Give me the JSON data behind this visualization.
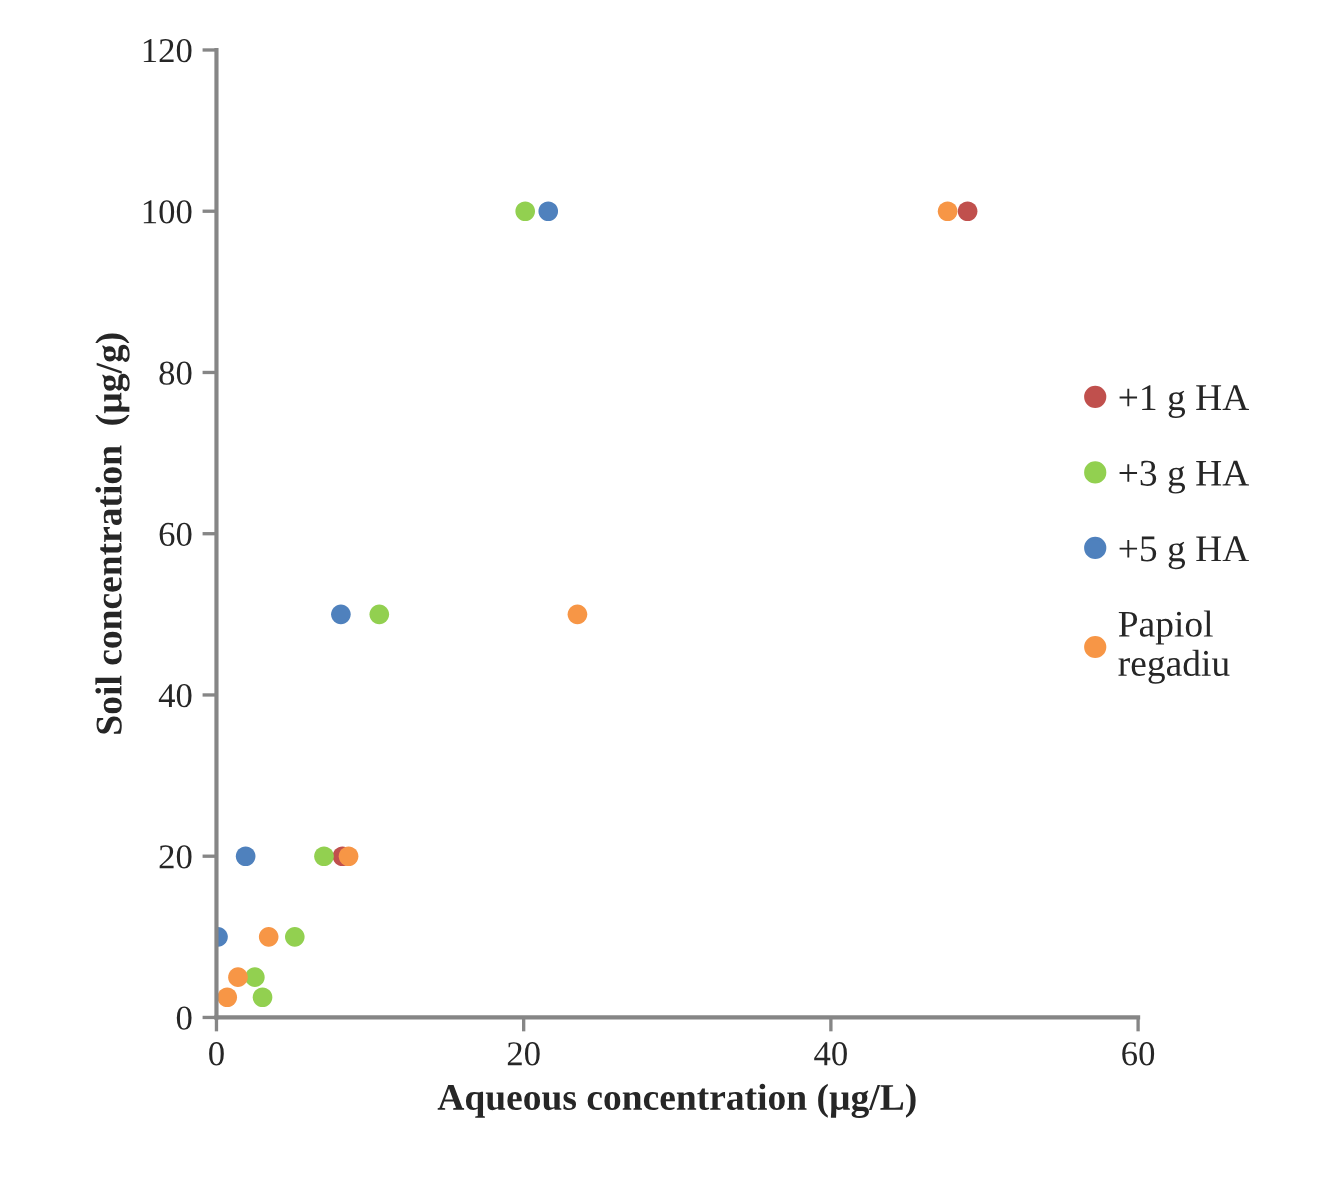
{
  "chart_data": {
    "type": "scatter",
    "xlabel": "Aqueous concentration (µg/L)",
    "ylabel": "Soil concentration  (µg/g)",
    "xlim": [
      0,
      60
    ],
    "xticks": [
      0,
      20,
      40,
      60
    ],
    "ylim": [
      0,
      120
    ],
    "yticks": [
      0,
      20,
      40,
      60,
      80,
      100,
      120
    ],
    "grid": false,
    "legend": "right",
    "marker": "circle",
    "series": [
      {
        "name": "+1 g HA",
        "color": "#c0504d",
        "x": [
          48.9,
          8.2
        ],
        "values": [
          100,
          20
        ]
      },
      {
        "name": "+3 g HA",
        "color": "#92d050",
        "x": [
          20.1,
          10.6,
          7.0,
          5.1,
          2.5,
          3.0
        ],
        "values": [
          100,
          50,
          20,
          10,
          5,
          2.5
        ]
      },
      {
        "name": "+5 g HA",
        "color": "#4f81bd",
        "x": [
          21.6,
          8.1,
          1.9,
          0.1
        ],
        "values": [
          100,
          50,
          20,
          10
        ]
      },
      {
        "name": "Papiol\nregadiu",
        "color": "#f79646",
        "x": [
          47.6,
          23.5,
          8.6,
          3.4,
          1.4,
          0.7
        ],
        "values": [
          100,
          50,
          20,
          10,
          5,
          2.5
        ]
      }
    ]
  }
}
